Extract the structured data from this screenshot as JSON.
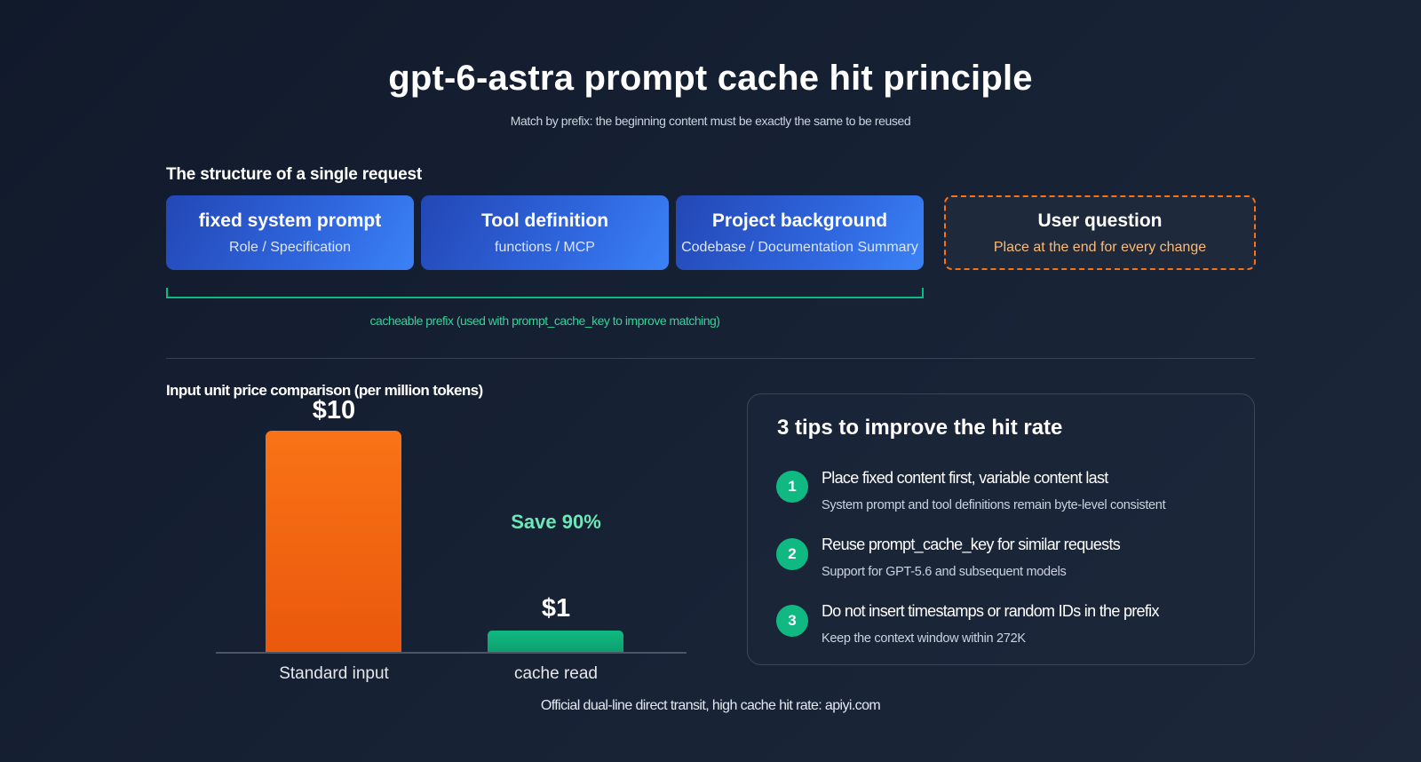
{
  "title": "gpt-6-astra prompt cache hit principle",
  "subtitle": "Match by prefix: the beginning content must be exactly the same to be reused",
  "structure": {
    "label": "The structure of a single request",
    "blocks": [
      {
        "title": "fixed system prompt",
        "sub": "Role / Specification"
      },
      {
        "title": "Tool definition",
        "sub": "functions / MCP"
      },
      {
        "title": "Project background",
        "sub": "Codebase / Documentation Summary"
      }
    ],
    "user_block": {
      "title": "User question",
      "sub": "Place at the end for every change"
    },
    "prefix_label": "cacheable prefix (used with prompt_cache_key to improve matching)"
  },
  "price": {
    "label": "Input unit price comparison (per million tokens)",
    "bars": [
      {
        "category": "Standard input",
        "value": 10,
        "value_label": "$10",
        "color": "#f97316"
      },
      {
        "category": "cache read",
        "value": 1,
        "value_label": "$1",
        "color": "#10b981"
      }
    ],
    "save_label": "Save 90%"
  },
  "tips": {
    "title": "3 tips to improve the hit rate",
    "items": [
      {
        "num": "1",
        "main": "Place fixed content first, variable content last",
        "sub": "System prompt and tool definitions remain byte-level consistent"
      },
      {
        "num": "2",
        "main": "Reuse prompt_cache_key for similar requests",
        "sub": "Support for GPT-5.6 and subsequent models"
      },
      {
        "num": "3",
        "main": "Do not insert timestamps or random IDs in the prefix",
        "sub": "Keep the context window within 272K"
      }
    ]
  },
  "footer": "Official dual-line direct transit, high cache hit rate: apiyi.com",
  "colors": {
    "accent_blue": "#3b82f6",
    "accent_orange": "#f97316",
    "accent_green": "#10b981"
  }
}
